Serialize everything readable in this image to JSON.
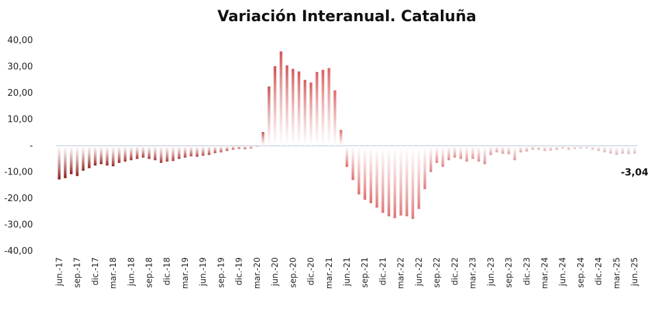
{
  "chart_data": {
    "type": "bar",
    "title": "Variación Interanual. Cataluña",
    "xlabel": "",
    "ylabel": "",
    "ylim": [
      -40,
      40
    ],
    "yticks": [
      "40,00",
      "30,00",
      "20,00",
      "10,00",
      "-",
      "-10,00",
      "-20,00",
      "-30,00",
      "-40,00"
    ],
    "grid": false,
    "legend": "none",
    "colors": {
      "start": "#8b1a1a",
      "mid": "#e06a6a",
      "end": "#d9b8be",
      "zero_line": "#c9d3e6"
    },
    "tick_labels": [
      "jun.-17",
      "sep.-17",
      "dic.-17",
      "mar.-18",
      "jun.-18",
      "sep.-18",
      "dic.-18",
      "mar.-19",
      "jun.-19",
      "sep.-19",
      "dic.-19",
      "mar.-20",
      "jun.-20",
      "sep.-20",
      "dic.-20",
      "mar.-21",
      "jun.-21",
      "sep.-21",
      "dic.-21",
      "mar.-22",
      "jun.-22",
      "sep.-22",
      "dic.-22",
      "mar.-23",
      "jun.-23",
      "sep.-23",
      "dic.-23",
      "mar.-24",
      "jun.-24",
      "sep.-24",
      "dic.-24",
      "mar.-25",
      "jun.-25"
    ],
    "values": [
      -12.8,
      -12.3,
      -10.8,
      -11.5,
      -9.5,
      -8.5,
      -7.5,
      -7.0,
      -7.5,
      -7.8,
      -6.5,
      -6.0,
      -5.5,
      -5.0,
      -4.5,
      -5.0,
      -5.5,
      -6.5,
      -6.0,
      -5.8,
      -5.0,
      -4.5,
      -4.0,
      -4.2,
      -3.8,
      -3.5,
      -2.8,
      -2.5,
      -2.0,
      -1.5,
      -1.2,
      -1.3,
      -1.0,
      -0.3,
      5.2,
      22.5,
      30.2,
      35.8,
      30.5,
      29.2,
      28.2,
      25.0,
      24.0,
      28.0,
      28.8,
      29.5,
      21.0,
      6.0,
      -8.0,
      -13.0,
      -18.5,
      -20.5,
      -21.8,
      -23.5,
      -25.5,
      -26.8,
      -27.5,
      -26.5,
      -26.8,
      -27.8,
      -24.0,
      -16.5,
      -10.0,
      -6.5,
      -8.0,
      -5.5,
      -4.5,
      -5.0,
      -6.0,
      -5.0,
      -6.0,
      -7.0,
      -3.5,
      -2.5,
      -3.0,
      -3.2,
      -5.5,
      -2.5,
      -2.2,
      -1.5,
      -1.5,
      -2.0,
      -1.8,
      -1.5,
      -1.0,
      -1.5,
      -1.2,
      -1.0,
      -1.0,
      -1.5,
      -2.0,
      -2.5,
      -3.0,
      -3.5,
      -3.0,
      -3.2,
      -3.04
    ],
    "data_labels": [
      {
        "index": 96,
        "text": "-3,04"
      }
    ]
  }
}
